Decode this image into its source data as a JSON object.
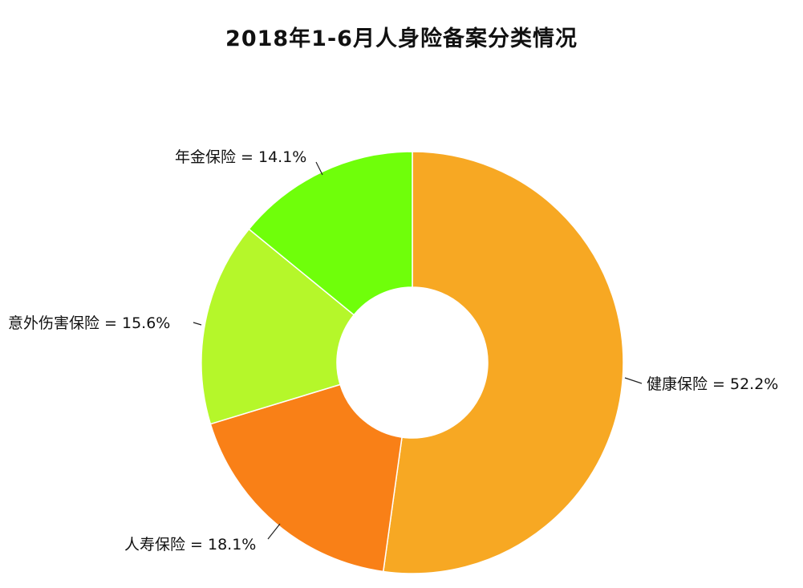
{
  "chart_data": {
    "type": "pie",
    "title": "2018年1-6月人身险备案分类情况",
    "donut": true,
    "categories": [
      "健康保险",
      "人寿保险",
      "意外伤害保险",
      "年金保险"
    ],
    "values": [
      52.2,
      18.1,
      15.6,
      14.1
    ],
    "unit": "%",
    "labels": [
      "健康保险 = 52.2%",
      "人寿保险 = 18.1%",
      "意外伤害保险 = 15.6%",
      "年金保险 = 14.1%"
    ],
    "colors": [
      "#F7A823",
      "#F98017",
      "#B5F72A",
      "#6FFF0A"
    ],
    "start": "12 o'clock",
    "direction": "clockwise",
    "legend": "none"
  }
}
